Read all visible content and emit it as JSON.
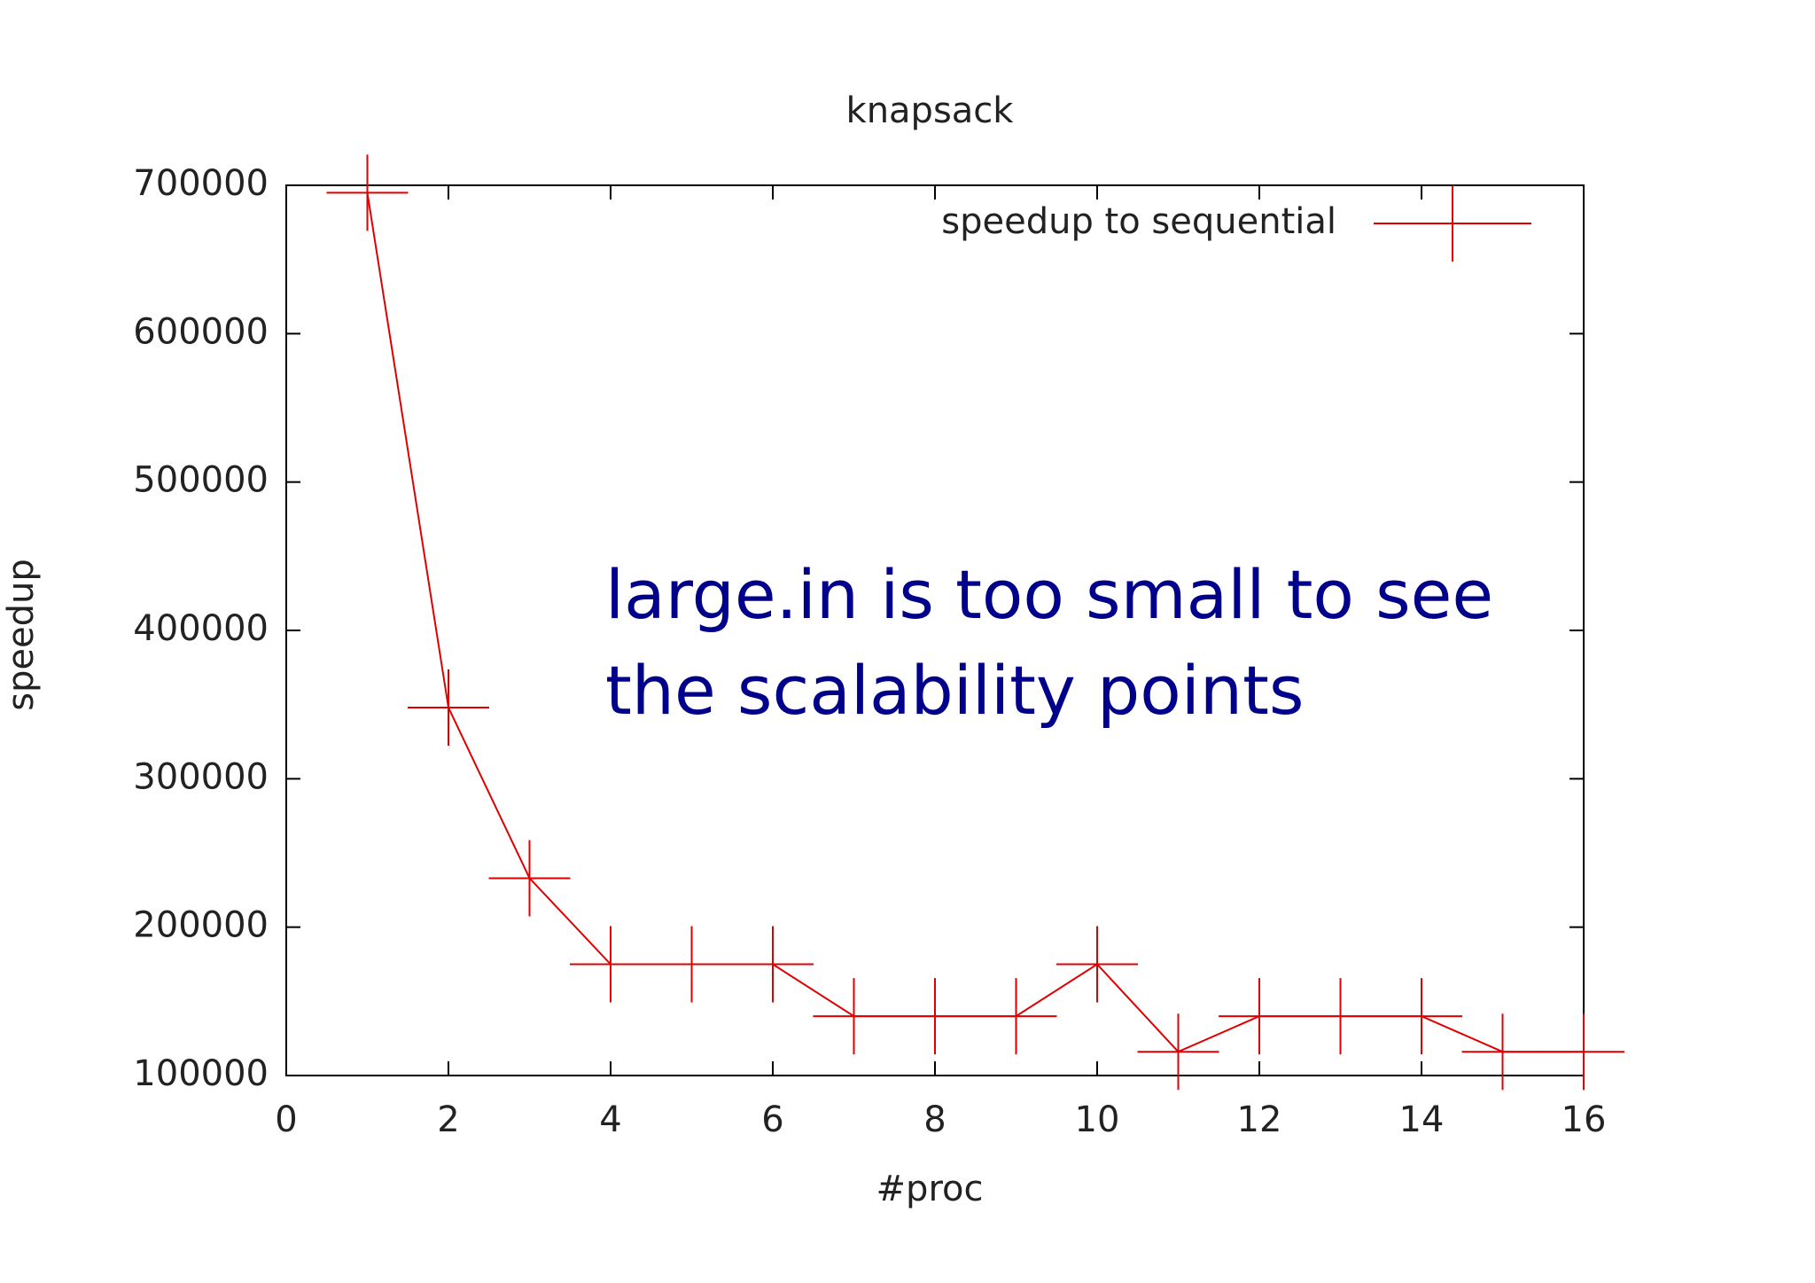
{
  "chart_data": {
    "type": "line",
    "title": "knapsack",
    "x_label": "#proc",
    "y_label": "speedup",
    "x": [
      1,
      2,
      3,
      4,
      5,
      6,
      7,
      8,
      9,
      10,
      11,
      12,
      13,
      14,
      15,
      16
    ],
    "series": [
      {
        "name": "speedup to sequential",
        "color": "#e00000",
        "values": [
          695000,
          348000,
          233000,
          175000,
          175000,
          175000,
          140000,
          140000,
          140000,
          175000,
          116000,
          140000,
          140000,
          140000,
          116000,
          116000
        ]
      }
    ],
    "xlim": [
      0,
      16
    ],
    "xticks": [
      0,
      2,
      4,
      6,
      8,
      10,
      12,
      14,
      16
    ],
    "ylim": [
      100000,
      700000
    ],
    "yticks": [
      100000,
      200000,
      300000,
      400000,
      500000,
      600000,
      700000
    ],
    "legend": "top-right",
    "grid": false,
    "annotations": [
      "large.in is too small to see",
      "the scalability points"
    ],
    "annotation_color": "#00008b"
  }
}
